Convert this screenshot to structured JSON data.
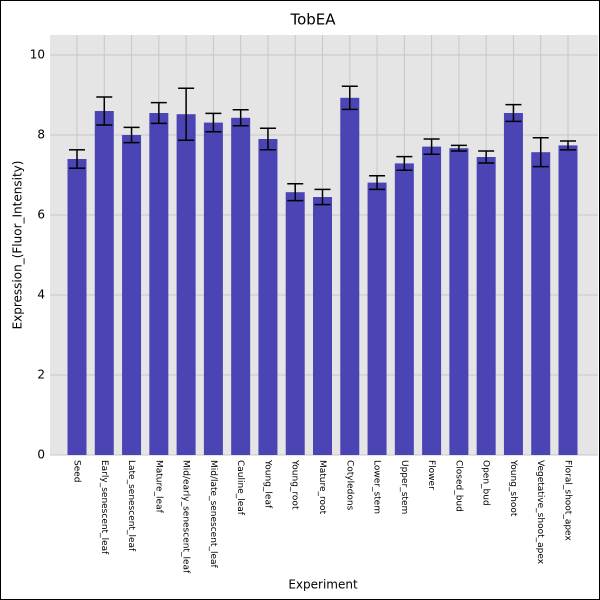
{
  "chart_data": {
    "type": "bar",
    "title": "TobEA",
    "xlabel": "Experiment",
    "ylabel": "Expression_(Fluor_Intensity)",
    "categories": [
      "Seed",
      "Early_senescent_leaf",
      "Late_senescent_leaf",
      "Mature_leaf",
      "Mid/early_senescent_leaf",
      "Mid/late_senescent_leaf",
      "Cauline_leaf",
      "Young_leaf",
      "Young_root",
      "Mature_root",
      "Cotyledons",
      "Lower_stem",
      "Upper_stem",
      "Flower",
      "Closed_bud",
      "Open_bud",
      "Young_shoot",
      "Vegetative_shoot_apex",
      "Floral_shoot_apex"
    ],
    "values": [
      7.4,
      8.6,
      8.0,
      8.55,
      8.52,
      8.31,
      8.43,
      7.9,
      6.57,
      6.45,
      8.93,
      6.81,
      7.29,
      7.71,
      7.67,
      7.45,
      8.55,
      7.57,
      7.74
    ],
    "errors": [
      0.23,
      0.35,
      0.19,
      0.26,
      0.65,
      0.23,
      0.2,
      0.27,
      0.21,
      0.19,
      0.29,
      0.17,
      0.17,
      0.19,
      0.07,
      0.15,
      0.21,
      0.36,
      0.11
    ],
    "color": "#4b44b5",
    "ylim": [
      0,
      10.5
    ],
    "yticks": [
      0,
      2,
      4,
      6,
      8,
      10
    ],
    "grid": true
  }
}
